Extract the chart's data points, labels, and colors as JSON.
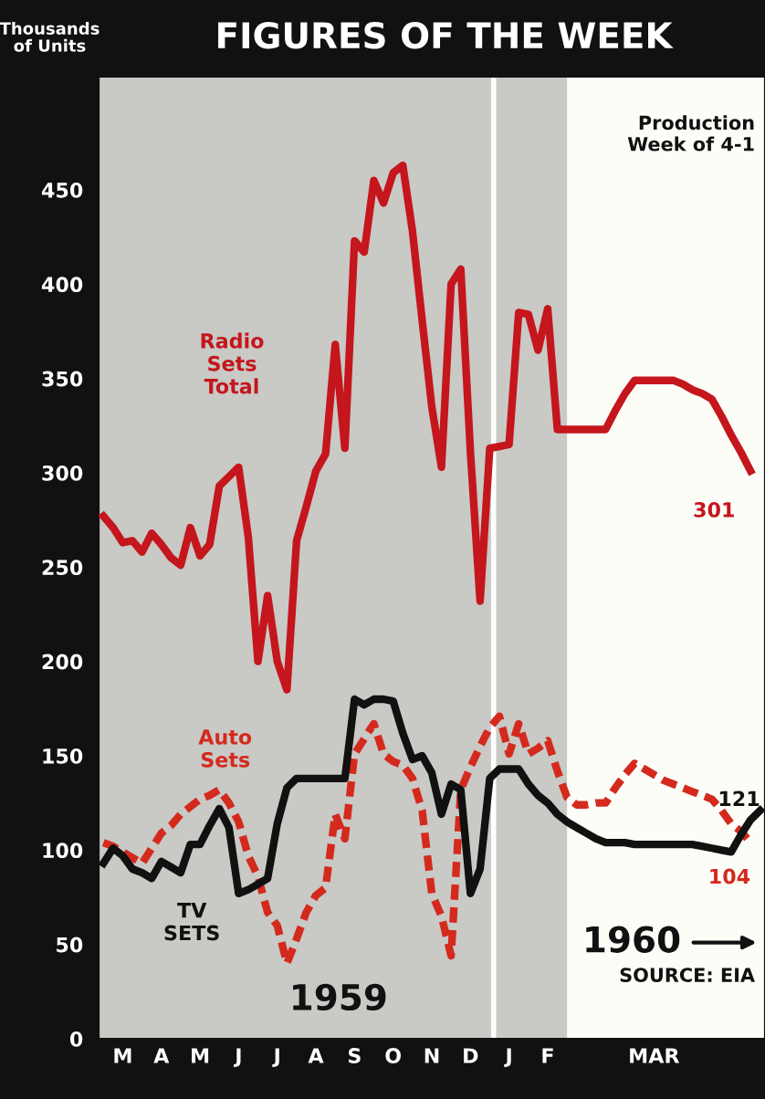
{
  "chart_data": {
    "type": "line",
    "title": "FIGURES OF THE WEEK",
    "ylabel": "Thousands of Units",
    "categories": [
      null,
      null,
      "M",
      null,
      null,
      null,
      "A",
      null,
      null,
      null,
      "M",
      null,
      null,
      null,
      "J",
      null,
      null,
      null,
      "J",
      null,
      null,
      null,
      "A",
      null,
      null,
      null,
      "S",
      null,
      null,
      null,
      "O",
      null,
      null,
      null,
      "N",
      null,
      null,
      null,
      "D",
      null,
      null,
      null,
      "J",
      null,
      null,
      null,
      "F",
      null,
      null,
      null,
      null,
      null,
      null,
      null,
      null,
      null,
      null,
      "MAR",
      null,
      null,
      null,
      null,
      null,
      null,
      null,
      null,
      null,
      null,
      null
    ],
    "ylim": [
      0,
      510
    ],
    "yticks": [
      0,
      50,
      100,
      150,
      200,
      250,
      300,
      350,
      400,
      450
    ],
    "grid": false,
    "legend": false,
    "marker": "none",
    "annotations": [
      "Production Week of 4-1",
      "1959",
      "1960",
      "SOURCE: EIA"
    ],
    "series": [
      {
        "name": "Radio Sets Total",
        "color": "#c4161c",
        "line_style": "solid",
        "values": [
          277,
          271,
          263,
          264,
          258,
          268,
          262,
          255,
          251,
          271,
          256,
          262,
          293,
          298,
          303,
          266,
          200,
          235,
          200,
          185,
          264,
          282,
          301,
          310,
          368,
          313,
          423,
          417,
          455,
          443,
          459,
          463,
          428,
          381,
          335,
          303,
          400,
          408,
          311,
          232,
          313,
          314,
          315,
          385,
          384,
          365,
          387,
          323,
          323,
          323,
          323,
          323,
          323,
          333,
          342,
          349,
          349,
          349,
          349,
          349,
          347,
          344,
          342,
          339,
          330,
          320,
          311,
          301,
          null
        ],
        "value_labels": [
          null,
          null,
          null,
          null,
          null,
          null,
          null,
          null,
          null,
          null,
          null,
          null,
          null,
          null,
          null,
          null,
          null,
          null,
          null,
          null,
          null,
          null,
          null,
          null,
          null,
          null,
          null,
          null,
          null,
          null,
          null,
          null,
          null,
          null,
          null,
          null,
          null,
          null,
          null,
          null,
          null,
          null,
          null,
          null,
          null,
          null,
          null,
          null,
          null,
          null,
          null,
          null,
          null,
          null,
          null,
          null,
          null,
          null,
          null,
          null,
          null,
          null,
          null,
          null,
          null,
          null,
          null,
          "301",
          null
        ]
      },
      {
        "name": "Auto Sets",
        "color": "#d42a1e",
        "line_style": "dashed",
        "values": [
          104,
          102,
          99,
          96,
          93,
          101,
          109,
          113,
          119,
          123,
          127,
          129,
          132,
          125,
          115,
          97,
          86,
          67,
          60,
          40,
          53,
          67,
          76,
          80,
          119,
          106,
          151,
          159,
          167,
          151,
          147,
          145,
          138,
          121,
          77,
          65,
          44,
          132,
          144,
          155,
          165,
          171,
          151,
          167,
          151,
          154,
          158,
          142,
          128,
          124,
          124,
          125,
          125,
          133,
          140,
          146,
          143,
          140,
          137,
          135,
          133,
          131,
          129,
          127,
          121,
          114,
          110,
          104,
          null
        ],
        "value_labels": [
          null,
          null,
          null,
          null,
          null,
          null,
          null,
          null,
          null,
          null,
          null,
          null,
          null,
          null,
          null,
          null,
          null,
          null,
          null,
          null,
          null,
          null,
          null,
          null,
          null,
          null,
          null,
          null,
          null,
          null,
          null,
          null,
          null,
          null,
          null,
          null,
          null,
          null,
          null,
          null,
          null,
          null,
          null,
          null,
          null,
          null,
          null,
          null,
          null,
          null,
          null,
          null,
          null,
          null,
          null,
          null,
          null,
          null,
          null,
          null,
          null,
          null,
          null,
          null,
          null,
          null,
          null,
          "104",
          null
        ]
      },
      {
        "name": "TV SETS",
        "color": "#111111",
        "line_style": "solid",
        "values": [
          93,
          101,
          97,
          90,
          88,
          85,
          94,
          91,
          88,
          103,
          103,
          113,
          122,
          112,
          77,
          79,
          82,
          85,
          114,
          133,
          138,
          138,
          138,
          138,
          138,
          138,
          180,
          177,
          180,
          180,
          179,
          162,
          148,
          150,
          141,
          119,
          135,
          132,
          77,
          90,
          138,
          143,
          143,
          143,
          135,
          129,
          125,
          119,
          115,
          112,
          109,
          106,
          104,
          104,
          104,
          103,
          103,
          103,
          103,
          103,
          103,
          103,
          102,
          101,
          100,
          99,
          108,
          116,
          121
        ],
        "value_labels": [
          null,
          null,
          null,
          null,
          null,
          null,
          null,
          null,
          null,
          null,
          null,
          null,
          null,
          null,
          null,
          null,
          null,
          null,
          null,
          null,
          null,
          null,
          null,
          null,
          null,
          null,
          null,
          null,
          null,
          null,
          null,
          null,
          null,
          null,
          null,
          null,
          null,
          null,
          null,
          null,
          null,
          null,
          null,
          null,
          null,
          null,
          null,
          null,
          null,
          null,
          null,
          null,
          null,
          null,
          null,
          null,
          null,
          null,
          null,
          null,
          null,
          null,
          null,
          null,
          null,
          null,
          null,
          null,
          "121"
        ]
      }
    ]
  }
}
